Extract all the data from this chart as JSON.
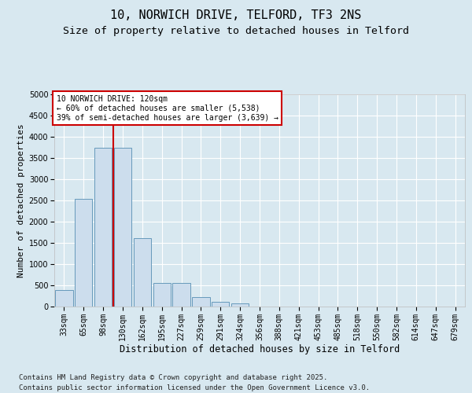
{
  "title_line1": "10, NORWICH DRIVE, TELFORD, TF3 2NS",
  "title_line2": "Size of property relative to detached houses in Telford",
  "xlabel": "Distribution of detached houses by size in Telford",
  "ylabel": "Number of detached properties",
  "categories": [
    "33sqm",
    "65sqm",
    "98sqm",
    "130sqm",
    "162sqm",
    "195sqm",
    "227sqm",
    "259sqm",
    "291sqm",
    "324sqm",
    "356sqm",
    "388sqm",
    "421sqm",
    "453sqm",
    "485sqm",
    "518sqm",
    "550sqm",
    "582sqm",
    "614sqm",
    "647sqm",
    "679sqm"
  ],
  "bar_values": [
    380,
    2530,
    3750,
    3750,
    1620,
    560,
    560,
    230,
    120,
    75,
    0,
    0,
    0,
    0,
    0,
    0,
    0,
    0,
    0,
    0,
    0
  ],
  "bar_color": "#ccdded",
  "bar_edge_color": "#6699bb",
  "vline_x_index": 2.5,
  "vline_color": "#cc0000",
  "annotation_text": "10 NORWICH DRIVE: 120sqm\n← 60% of detached houses are smaller (5,538)\n39% of semi-detached houses are larger (3,639) →",
  "annotation_box_facecolor": "white",
  "annotation_box_edgecolor": "#cc0000",
  "ylim": [
    0,
    5000
  ],
  "yticks": [
    0,
    500,
    1000,
    1500,
    2000,
    2500,
    3000,
    3500,
    4000,
    4500,
    5000
  ],
  "bg_color": "#d8e8f0",
  "plot_bg_color": "#d8e8f0",
  "grid_color": "#ffffff",
  "footer_line1": "Contains HM Land Registry data © Crown copyright and database right 2025.",
  "footer_line2": "Contains public sector information licensed under the Open Government Licence v3.0.",
  "title_fontsize": 11,
  "subtitle_fontsize": 9.5,
  "ylabel_fontsize": 8,
  "xlabel_fontsize": 8.5,
  "tick_fontsize": 7,
  "annotation_fontsize": 7,
  "footer_fontsize": 6.5
}
